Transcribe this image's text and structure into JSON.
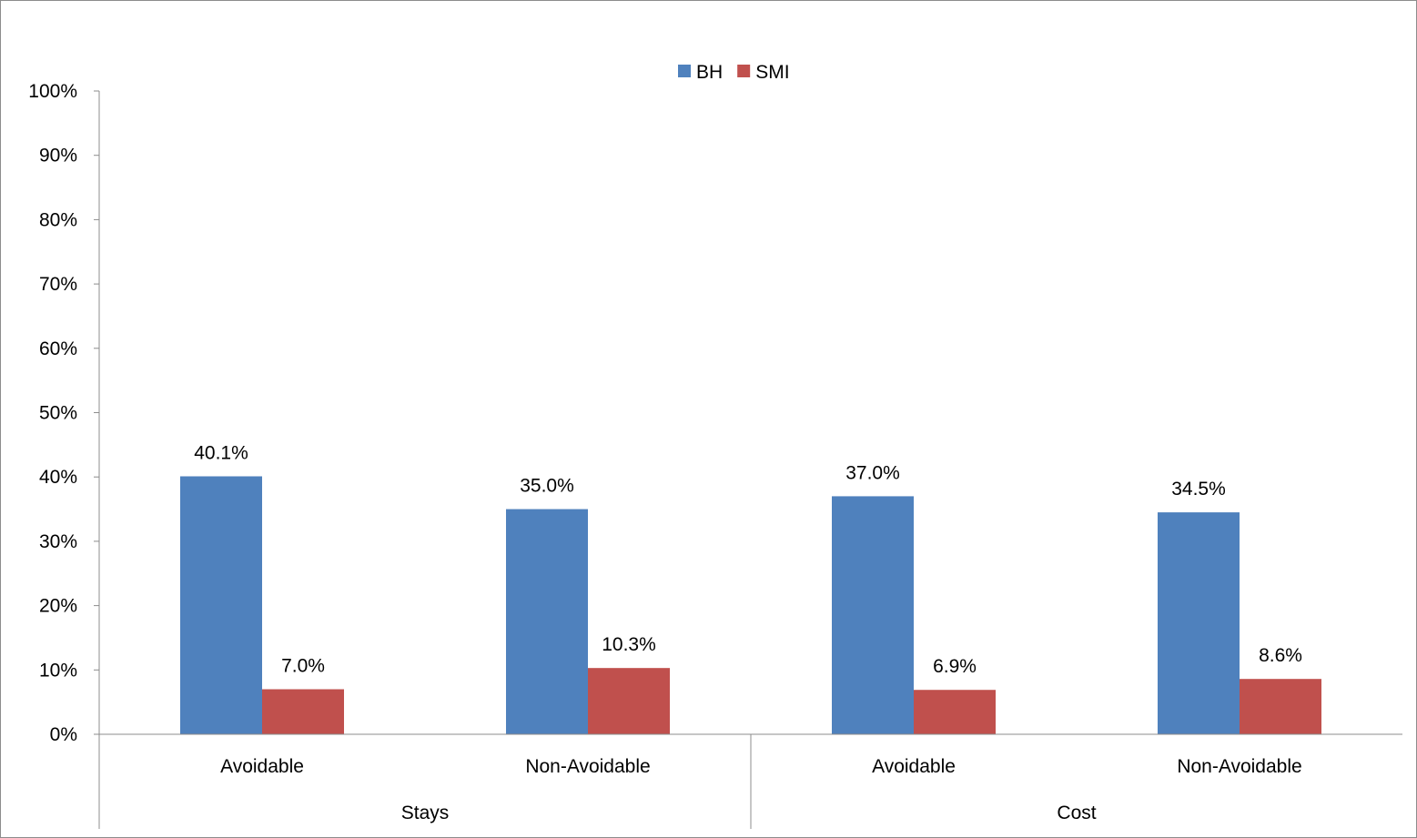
{
  "chart_data": {
    "type": "bar",
    "groups": [
      {
        "label": "Stays",
        "categories": [
          "Avoidable",
          "Non-Avoidable"
        ]
      },
      {
        "label": "Cost",
        "categories": [
          "Avoidable",
          "Non-Avoidable"
        ]
      }
    ],
    "categories": [
      "Avoidable",
      "Non-Avoidable",
      "Avoidable",
      "Non-Avoidable"
    ],
    "series": [
      {
        "name": "BH",
        "color": "#4f81bd",
        "values": [
          40.1,
          35.0,
          37.0,
          34.5
        ],
        "labels": [
          "40.1%",
          "35.0%",
          "37.0%",
          "34.5%"
        ]
      },
      {
        "name": "SMI",
        "color": "#c0504d",
        "values": [
          7.0,
          10.3,
          6.9,
          8.6
        ],
        "labels": [
          "7.0%",
          "10.3%",
          "6.9%",
          "8.6%"
        ]
      }
    ],
    "yticks": [
      "0%",
      "10%",
      "20%",
      "30%",
      "40%",
      "50%",
      "60%",
      "70%",
      "80%",
      "90%",
      "100%"
    ],
    "ylim": [
      0,
      100
    ],
    "title": "",
    "xlabel": "",
    "ylabel": "",
    "legend_position": "top-center",
    "grid": false
  }
}
